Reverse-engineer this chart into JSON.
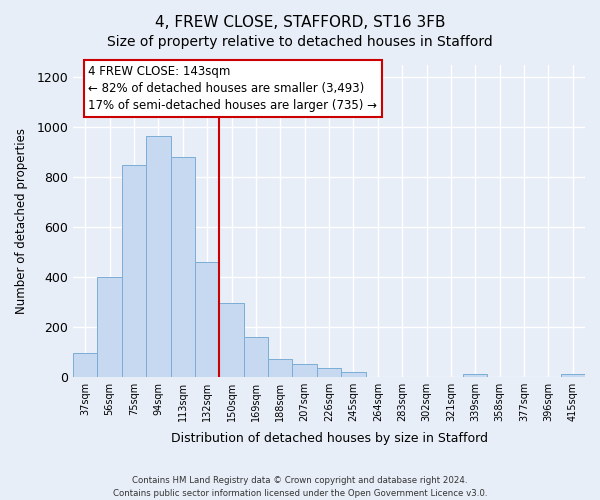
{
  "title": "4, FREW CLOSE, STAFFORD, ST16 3FB",
  "subtitle": "Size of property relative to detached houses in Stafford",
  "xlabel": "Distribution of detached houses by size in Stafford",
  "ylabel": "Number of detached properties",
  "bar_labels": [
    "37sqm",
    "56sqm",
    "75sqm",
    "94sqm",
    "113sqm",
    "132sqm",
    "150sqm",
    "169sqm",
    "188sqm",
    "207sqm",
    "226sqm",
    "245sqm",
    "264sqm",
    "283sqm",
    "302sqm",
    "321sqm",
    "339sqm",
    "358sqm",
    "377sqm",
    "396sqm",
    "415sqm"
  ],
  "bar_values": [
    95,
    400,
    848,
    965,
    882,
    460,
    295,
    160,
    72,
    52,
    35,
    20,
    0,
    0,
    0,
    0,
    10,
    0,
    0,
    0,
    10
  ],
  "bar_color": "#c6d9f0",
  "bar_edge_color": "#7badd6",
  "vline_x_idx": 6,
  "vline_color": "#cc0000",
  "ylim": [
    0,
    1250
  ],
  "yticks": [
    0,
    200,
    400,
    600,
    800,
    1000,
    1200
  ],
  "annotation_title": "4 FREW CLOSE: 143sqm",
  "annotation_line1": "← 82% of detached houses are smaller (3,493)",
  "annotation_line2": "17% of semi-detached houses are larger (735) →",
  "annotation_box_color": "#ffffff",
  "annotation_box_edge": "#cc0000",
  "footer_line1": "Contains HM Land Registry data © Crown copyright and database right 2024.",
  "footer_line2": "Contains public sector information licensed under the Open Government Licence v3.0.",
  "background_color": "#e8eef8",
  "grid_color": "#ffffff",
  "title_fontsize": 11,
  "subtitle_fontsize": 10
}
